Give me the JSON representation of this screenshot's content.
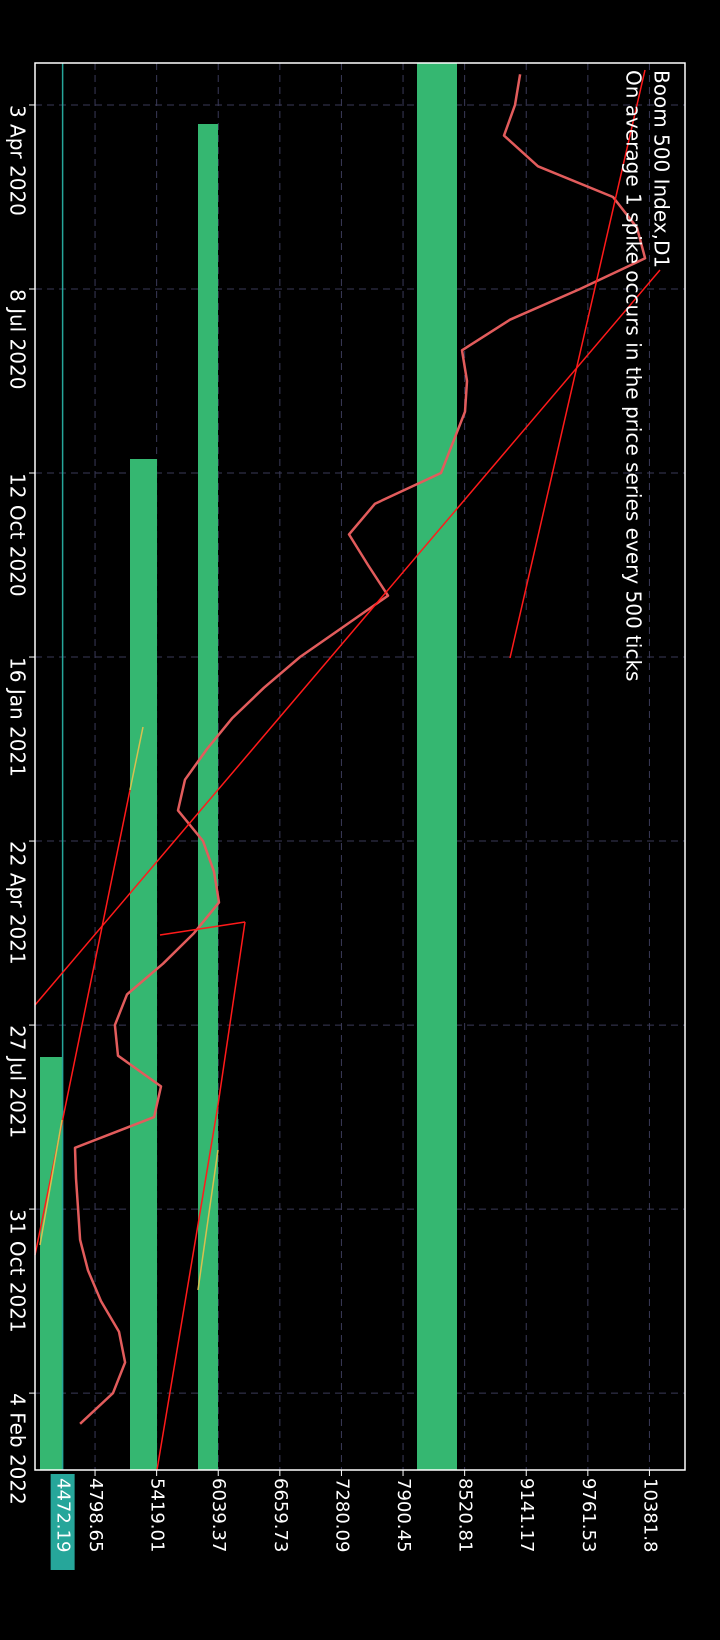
{
  "chart_data": {
    "type": "line",
    "title": "Boom 500 Index,D1",
    "subtitle": "On average 1 spike occurs in the price series every 500 ticks",
    "categories": [
      null,
      "3 Apr 2020",
      null,
      null,
      null,
      null,
      null,
      "8 Jul 2020",
      null,
      null,
      null,
      null,
      null,
      "12 Oct 2020",
      null,
      null,
      null,
      null,
      null,
      "16 Jan 2021",
      null,
      null,
      null,
      null,
      null,
      "22 Apr 2021",
      null,
      null,
      null,
      null,
      null,
      "27 Jul 2021",
      null,
      null,
      null,
      null,
      null,
      "31 Oct 2021",
      null,
      null,
      null,
      null,
      null,
      "4 Feb 2022",
      null
    ],
    "values": [
      9079,
      9028,
      8917,
      9260,
      10015,
      10257,
      10338,
      9683,
      8978,
      8494,
      8545,
      8524,
      8404,
      8283,
      7618,
      7356,
      7548,
      7749,
      7306,
      6863,
      6500,
      6178,
      5926,
      5705,
      5634,
      5886,
      5997,
      6047,
      5795,
      5483,
      5121,
      4999,
      5030,
      5463,
      5393,
      4597,
      4607,
      4628,
      4648,
      4728,
      4859,
      5040,
      5101,
      4980,
      4648
    ],
    "color": "#e25c5c",
    "ylim": [
      4194,
      10740
    ],
    "yticks": [
      4798.65,
      5419.01,
      6039.37,
      6659.73,
      7280.09,
      7900.45,
      8520.81,
      9141.17,
      9761.53,
      10381.8
    ],
    "last_price": 4472.19,
    "grid": true
  }
}
